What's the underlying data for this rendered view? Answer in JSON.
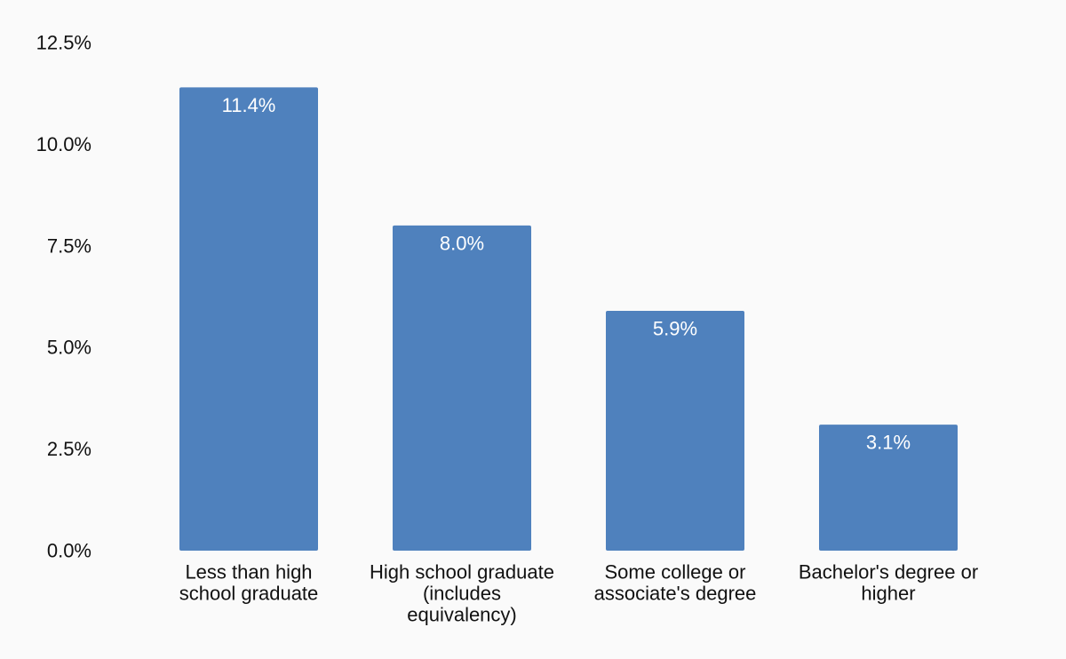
{
  "chart_data": {
    "type": "bar",
    "title": "",
    "xlabel": "",
    "ylabel": "",
    "categories": [
      [
        "Less than high",
        "school graduate"
      ],
      [
        "High school graduate",
        "(includes",
        "equivalency)"
      ],
      [
        "Some college or",
        "associate's degree"
      ],
      [
        "Bachelor's degree or",
        "higher"
      ]
    ],
    "values": [
      11.4,
      8.0,
      5.9,
      3.1
    ],
    "data_labels": [
      "11.4%",
      "8.0%",
      "5.9%",
      "3.1%"
    ],
    "ylim": [
      0,
      12.5
    ],
    "yticks": [
      0,
      2.5,
      5,
      7.5,
      10,
      12.5
    ],
    "ytick_labels": [
      "0.0%",
      "2.5%",
      "5.0%",
      "7.5%",
      "10.0%",
      "12.5%"
    ],
    "grid": false,
    "legend": "none",
    "bar_color": "#4f81bd",
    "label_color": "#ffffff",
    "text_color": "#111111",
    "background": "#fafafa"
  }
}
